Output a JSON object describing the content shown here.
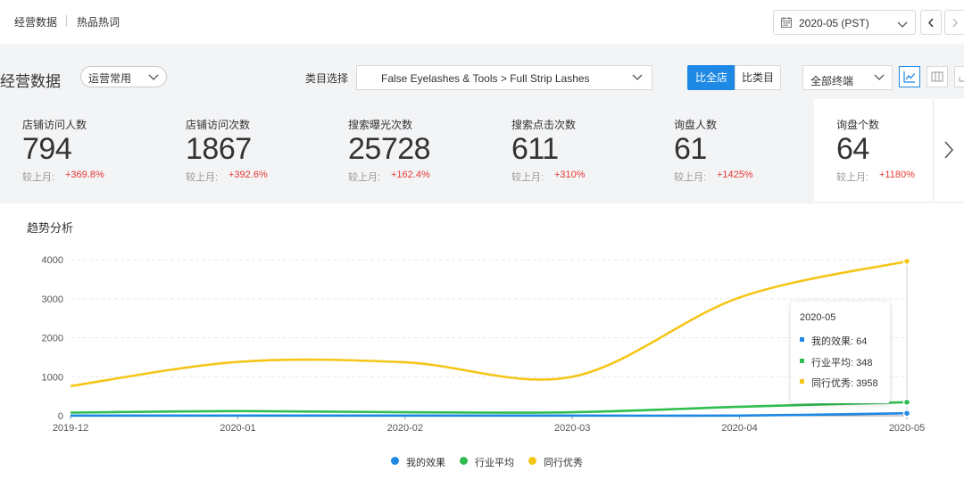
{
  "top_tabs": [
    "经营数据",
    "热品热词"
  ],
  "month_select": {
    "value": "2020-05 (PST)"
  },
  "toolbar": {
    "page_title": "经营数据",
    "view_preset": "运营常用",
    "category_label": "类目选择",
    "category_value": "False Eyelashes & Tools > Full Strip Lashes",
    "compare_all": "比全店",
    "compare_category": "比类目",
    "terminal": "全部终端"
  },
  "kpis": [
    {
      "label": "店铺访问人数",
      "value": "794",
      "compare_label": "较上月:",
      "delta": "+369.8%"
    },
    {
      "label": "店铺访问次数",
      "value": "1867",
      "compare_label": "较上月:",
      "delta": "+392.6%"
    },
    {
      "label": "搜索曝光次数",
      "value": "25728",
      "compare_label": "较上月:",
      "delta": "+162.4%"
    },
    {
      "label": "搜索点击次数",
      "value": "611",
      "compare_label": "较上月:",
      "delta": "+310%"
    },
    {
      "label": "询盘人数",
      "value": "61",
      "compare_label": "较上月:",
      "delta": "+1425%"
    },
    {
      "label": "询盘个数",
      "value": "64",
      "compare_label": "较上月:",
      "delta": "+1180%"
    }
  ],
  "chart_title": "趋势分析",
  "chart_data": {
    "type": "line",
    "x": [
      "2019-12",
      "2020-01",
      "2020-02",
      "2020-03",
      "2020-04",
      "2020-05"
    ],
    "ylim": [
      0,
      4000
    ],
    "yticks": [
      0,
      1000,
      2000,
      3000,
      4000
    ],
    "grid": true,
    "legend_position": "bottom",
    "series": [
      {
        "name": "我的效果",
        "color": "#1e88e5",
        "values": [
          5,
          5,
          5,
          5,
          5,
          64
        ]
      },
      {
        "name": "行业平均",
        "color": "#2ebd4f",
        "values": [
          80,
          120,
          90,
          90,
          230,
          348
        ]
      },
      {
        "name": "同行优秀",
        "color": "#f5c518",
        "values": [
          760,
          1380,
          1370,
          1000,
          3030,
          3958
        ]
      }
    ]
  },
  "tooltip": {
    "title": "2020-05",
    "rows": [
      "我的效果: 64",
      "行业平均: 348",
      "同行优秀: 3958"
    ]
  }
}
